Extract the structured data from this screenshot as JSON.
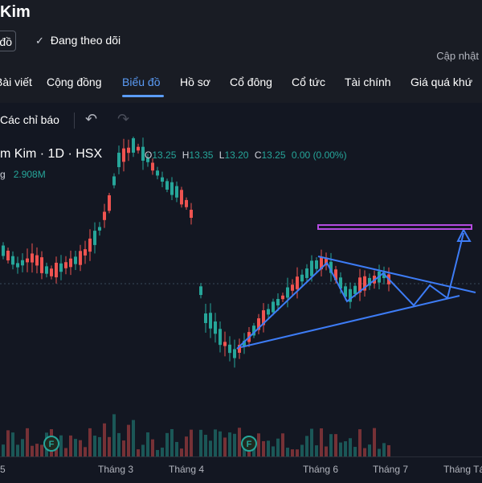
{
  "header": {
    "title": "Kim",
    "outline_button": "đồ",
    "follow_label": "Đang theo dõi",
    "check_icon": "check-icon",
    "update_label": "Cập nhật"
  },
  "tabs": [
    {
      "label": "Bài viết"
    },
    {
      "label": "Cộng đồng"
    },
    {
      "label": "Biểu đồ",
      "active": true
    },
    {
      "label": "Hồ sơ"
    },
    {
      "label": "Cổ đông"
    },
    {
      "label": "Cổ tức"
    },
    {
      "label": "Tài chính"
    },
    {
      "label": "Giá quá khứ"
    }
  ],
  "toolbar": {
    "indicators_label": "Các chỉ báo",
    "undo_icon": "undo-icon",
    "redo_icon": "redo-icon"
  },
  "legend": {
    "symbol": "m Kim · 1D · HSX",
    "o_label": "O",
    "o": "13.25",
    "h_label": "H",
    "h": "13.35",
    "l_label": "L",
    "l": "13.20",
    "c_label": "C",
    "c": "13.25",
    "change": "0.00 (0.00%)",
    "volume_label": "g",
    "volume": "2.908M"
  },
  "chart_data": {
    "type": "candlestick",
    "x_ticks": [
      "5",
      "Tháng 3",
      "Tháng 4",
      "Tháng 6",
      "Tháng 7",
      "Tháng Tá"
    ],
    "marker_label": "F",
    "colors": {
      "up": "#26a69a",
      "down": "#ef5350",
      "drawing": "#3d7cf6",
      "target": "#b44be0",
      "background": "#131722"
    }
  }
}
